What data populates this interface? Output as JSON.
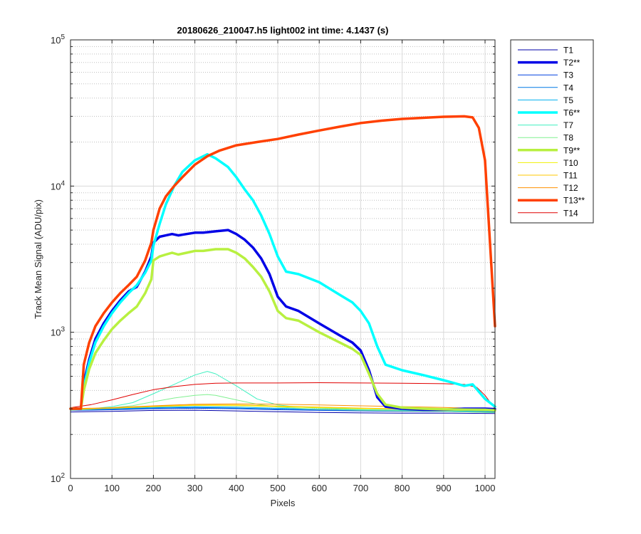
{
  "chart_data": {
    "type": "line",
    "title": "20180626_210047.h5  light002   int time: 4.1437 (s)",
    "xlabel": "Pixels",
    "ylabel": "Track Mean Signal (ADU/pix)",
    "xlim": [
      0,
      1024
    ],
    "ylim": [
      100,
      100000
    ],
    "yscale": "log",
    "grid": true,
    "minor_grid": true,
    "legend_position": "outside-right",
    "x_ticks": [
      "0",
      "100",
      "200",
      "300",
      "400",
      "500",
      "600",
      "700",
      "800",
      "900",
      "1000"
    ],
    "y_ticks": [
      {
        "base": "10",
        "exp": "2",
        "value": 100
      },
      {
        "base": "10",
        "exp": "3",
        "value": 1000
      },
      {
        "base": "10",
        "exp": "4",
        "value": 10000
      },
      {
        "base": "10",
        "exp": "5",
        "value": 100000
      }
    ],
    "series": [
      {
        "name": "T1",
        "color": "#0000AA",
        "width": 1,
        "x": [
          0,
          100,
          200,
          300,
          400,
          500,
          600,
          700,
          800,
          900,
          1024
        ],
        "y": [
          285,
          288,
          292,
          293,
          290,
          286,
          283,
          281,
          280,
          280,
          278
        ]
      },
      {
        "name": "T2**",
        "color": "#0000E6",
        "width": 3.5,
        "x": [
          0,
          25,
          32,
          45,
          60,
          80,
          100,
          120,
          140,
          160,
          180,
          195,
          200,
          215,
          230,
          245,
          260,
          280,
          300,
          320,
          350,
          380,
          400,
          420,
          440,
          460,
          480,
          500,
          520,
          550,
          600,
          650,
          680,
          700,
          720,
          740,
          760,
          800,
          850,
          900,
          950,
          1000,
          1024
        ],
        "y": [
          300,
          300,
          450,
          650,
          900,
          1150,
          1400,
          1650,
          1900,
          2050,
          2600,
          3300,
          4100,
          4500,
          4600,
          4700,
          4600,
          4700,
          4800,
          4800,
          4900,
          5000,
          4700,
          4300,
          3800,
          3200,
          2500,
          1750,
          1500,
          1400,
          1150,
          950,
          850,
          750,
          550,
          360,
          310,
          300,
          295,
          295,
          300,
          300,
          298
        ]
      },
      {
        "name": "T3",
        "color": "#0040E0",
        "width": 1,
        "x": [
          0,
          100,
          200,
          300,
          400,
          500,
          600,
          700,
          800,
          900,
          1024
        ],
        "y": [
          292,
          295,
          300,
          302,
          300,
          295,
          292,
          290,
          288,
          287,
          284
        ]
      },
      {
        "name": "T4",
        "color": "#0078E6",
        "width": 1,
        "x": [
          0,
          100,
          200,
          300,
          400,
          500,
          600,
          700,
          800,
          900,
          1024
        ],
        "y": [
          293,
          298,
          303,
          306,
          303,
          298,
          294,
          292,
          290,
          289,
          286
        ]
      },
      {
        "name": "T5",
        "color": "#00B0F0",
        "width": 1,
        "x": [
          0,
          100,
          200,
          300,
          400,
          500,
          600,
          700,
          800,
          900,
          1024
        ],
        "y": [
          295,
          300,
          306,
          310,
          308,
          302,
          298,
          295,
          293,
          291,
          288
        ]
      },
      {
        "name": "T6**",
        "color": "#00FFFF",
        "width": 3.5,
        "x": [
          0,
          25,
          32,
          45,
          60,
          80,
          100,
          120,
          140,
          160,
          180,
          195,
          200,
          215,
          230,
          250,
          270,
          300,
          330,
          350,
          380,
          400,
          420,
          440,
          460,
          480,
          500,
          520,
          550,
          600,
          650,
          680,
          700,
          720,
          740,
          760,
          800,
          850,
          900,
          950,
          970,
          1000,
          1024
        ],
        "y": [
          300,
          300,
          420,
          620,
          850,
          1100,
          1350,
          1600,
          1850,
          2100,
          2550,
          3100,
          3900,
          5500,
          7500,
          10000,
          12500,
          15000,
          16500,
          15500,
          13500,
          11500,
          9500,
          8000,
          6300,
          4700,
          3300,
          2600,
          2500,
          2200,
          1800,
          1600,
          1400,
          1150,
          800,
          600,
          550,
          510,
          470,
          430,
          440,
          350,
          310
        ]
      },
      {
        "name": "T7",
        "color": "#40F0C0",
        "width": 1,
        "x": [
          0,
          50,
          100,
          150,
          200,
          250,
          300,
          330,
          350,
          400,
          450,
          500,
          550,
          600,
          700,
          800,
          900,
          1024
        ],
        "y": [
          295,
          300,
          310,
          330,
          380,
          440,
          510,
          540,
          520,
          430,
          350,
          318,
          308,
          303,
          296,
          291,
          288,
          282
        ]
      },
      {
        "name": "T8",
        "color": "#80F090",
        "width": 1,
        "x": [
          0,
          50,
          100,
          150,
          200,
          250,
          300,
          330,
          350,
          400,
          450,
          500,
          550,
          600,
          700,
          800,
          900,
          1024
        ],
        "y": [
          293,
          298,
          305,
          315,
          335,
          355,
          370,
          375,
          370,
          345,
          322,
          308,
          302,
          298,
          293,
          290,
          288,
          282
        ]
      },
      {
        "name": "T9**",
        "color": "#B8F040",
        "width": 3.5,
        "x": [
          0,
          25,
          32,
          45,
          60,
          80,
          100,
          120,
          140,
          160,
          180,
          195,
          200,
          215,
          230,
          245,
          260,
          280,
          300,
          320,
          350,
          380,
          400,
          420,
          440,
          460,
          480,
          500,
          520,
          550,
          600,
          650,
          680,
          700,
          720,
          740,
          760,
          800,
          850,
          900,
          950,
          1000,
          1024
        ],
        "y": [
          300,
          300,
          400,
          560,
          720,
          880,
          1050,
          1200,
          1350,
          1500,
          1850,
          2300,
          3100,
          3300,
          3400,
          3500,
          3400,
          3500,
          3600,
          3600,
          3700,
          3700,
          3500,
          3200,
          2800,
          2400,
          1900,
          1400,
          1250,
          1200,
          1000,
          850,
          770,
          700,
          520,
          380,
          320,
          305,
          300,
          297,
          296,
          295,
          292
        ]
      },
      {
        "name": "T10",
        "color": "#F0F000",
        "width": 1,
        "x": [
          0,
          100,
          200,
          300,
          400,
          500,
          600,
          700,
          800,
          900,
          1024
        ],
        "y": [
          297,
          302,
          310,
          316,
          315,
          310,
          305,
          300,
          297,
          294,
          290
        ]
      },
      {
        "name": "T11",
        "color": "#FFC800",
        "width": 1,
        "x": [
          0,
          100,
          200,
          300,
          400,
          500,
          600,
          700,
          800,
          900,
          1024
        ],
        "y": [
          298,
          303,
          312,
          318,
          318,
          313,
          308,
          303,
          299,
          296,
          291
        ]
      },
      {
        "name": "T12",
        "color": "#FF9000",
        "width": 1,
        "x": [
          0,
          100,
          200,
          300,
          400,
          500,
          600,
          700,
          800,
          900,
          1024
        ],
        "y": [
          300,
          305,
          314,
          322,
          324,
          322,
          318,
          314,
          310,
          306,
          300
        ]
      },
      {
        "name": "T13**",
        "color": "#FF4000",
        "width": 3.5,
        "x": [
          0,
          25,
          32,
          45,
          60,
          80,
          100,
          120,
          140,
          160,
          180,
          195,
          200,
          215,
          230,
          250,
          270,
          300,
          330,
          360,
          400,
          450,
          500,
          550,
          600,
          650,
          700,
          750,
          800,
          850,
          900,
          950,
          970,
          985,
          1000,
          1010,
          1024
        ],
        "y": [
          300,
          300,
          600,
          850,
          1100,
          1350,
          1600,
          1850,
          2100,
          2400,
          3100,
          4100,
          5000,
          7000,
          8500,
          10000,
          11500,
          14000,
          16000,
          17500,
          19000,
          20000,
          21000,
          22500,
          24000,
          25500,
          27000,
          28000,
          28800,
          29300,
          29800,
          30000,
          29500,
          25000,
          15000,
          5000,
          1100
        ]
      },
      {
        "name": "T14",
        "color": "#E00000",
        "width": 1,
        "x": [
          0,
          50,
          100,
          150,
          200,
          250,
          300,
          350,
          400,
          450,
          500,
          600,
          700,
          800,
          900,
          950,
          980,
          1000,
          1024
        ],
        "y": [
          305,
          320,
          345,
          375,
          405,
          425,
          440,
          448,
          450,
          450,
          450,
          452,
          450,
          448,
          445,
          440,
          420,
          370,
          300
        ]
      }
    ]
  }
}
